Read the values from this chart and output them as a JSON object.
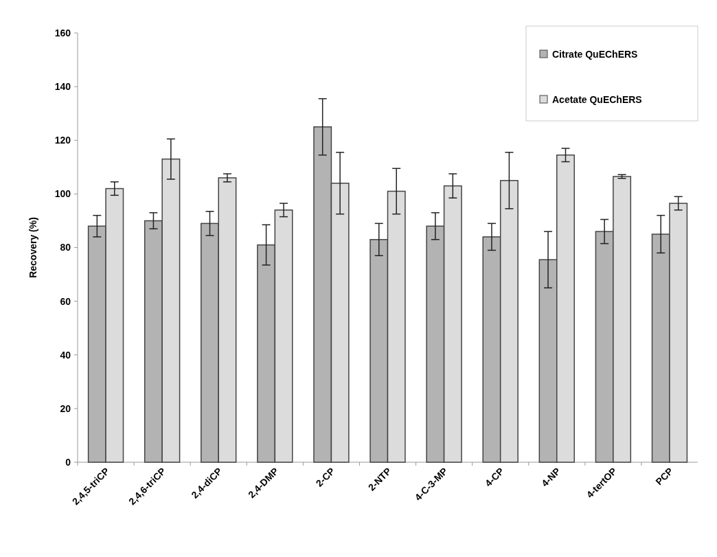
{
  "chart_data": {
    "type": "bar",
    "ylabel": "Recovery (%)",
    "categories": [
      "2,4,5-triCP",
      "2,4,6-triCP",
      "2,4-diCP",
      "2,4-DMP",
      "2-CP",
      "2-NTP",
      "4-C-3-MP",
      "4-CP",
      "4-NP",
      "4-tertOP",
      "PCP"
    ],
    "series": [
      {
        "name": "Citrate QuEChERS",
        "color": "#b3b3b3",
        "values": [
          88,
          90,
          89,
          81,
          125,
          83,
          88,
          84,
          75.5,
          86,
          85
        ],
        "errors": [
          4,
          3,
          4.5,
          7.5,
          10.5,
          6,
          5,
          5,
          10.5,
          4.5,
          7
        ]
      },
      {
        "name": "Acetate QuEChERS",
        "color": "#dcdcdc",
        "values": [
          102,
          113,
          106,
          94,
          104,
          101,
          103,
          105,
          114.5,
          106.5,
          96.5
        ],
        "errors": [
          2.5,
          7.5,
          1.5,
          2.5,
          11.5,
          8.5,
          4.5,
          10.5,
          2.5,
          0.7,
          2.5
        ]
      }
    ],
    "ylim": [
      0,
      160
    ],
    "yticks": [
      0,
      20,
      40,
      60,
      80,
      100,
      120,
      140,
      160
    ],
    "legend": "top right"
  }
}
